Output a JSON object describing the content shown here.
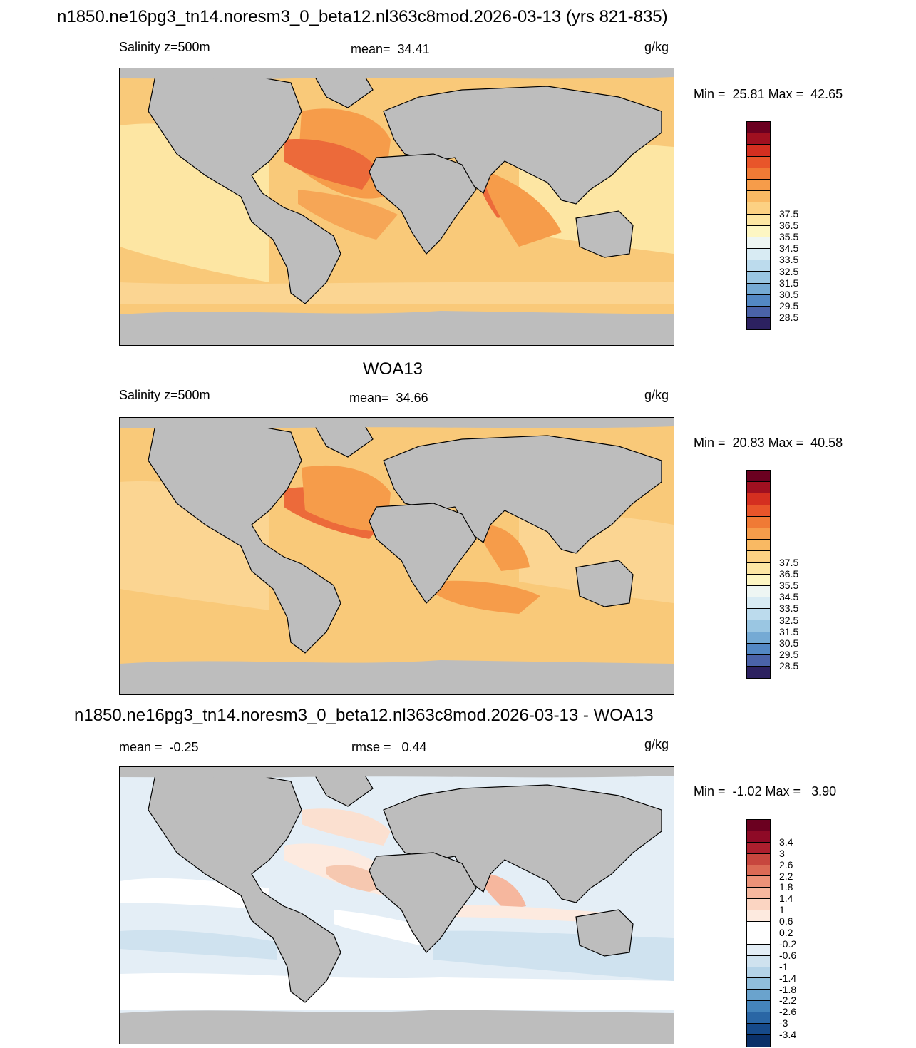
{
  "panel1": {
    "title": "n1850.ne16pg3_tn14.noresm3_0_beta12.nl363c8mod.2026-03-13 (yrs 821-835)",
    "left_label": "Salinity z=500m",
    "center_label": "mean=  34.41",
    "units": "g/kg",
    "minmax": "Min =  25.81 Max =  42.65",
    "colorbar_labels": [
      "37.5",
      "36.5",
      "35.5",
      "34.5",
      "33.5",
      "32.5",
      "31.5",
      "30.5",
      "29.5",
      "28.5"
    ]
  },
  "panel2": {
    "title": "WOA13",
    "left_label": "Salinity z=500m",
    "center_label": "mean=  34.66",
    "units": "g/kg",
    "minmax": "Min =  20.83 Max =  40.58",
    "colorbar_labels": [
      "37.5",
      "36.5",
      "35.5",
      "34.5",
      "33.5",
      "32.5",
      "31.5",
      "30.5",
      "29.5",
      "28.5"
    ]
  },
  "panel3": {
    "title": "n1850.ne16pg3_tn14.noresm3_0_beta12.nl363c8mod.2026-03-13 - WOA13",
    "left_label": "mean =  -0.25",
    "center_label": "rmse =   0.44",
    "units": "g/kg",
    "minmax": "Min =  -1.02 Max =   3.90",
    "colorbar_labels": [
      "3.4",
      "3",
      "2.6",
      "2.2",
      "1.8",
      "1.4",
      "1",
      "0.6",
      "0.2",
      "-0.2",
      "-0.6",
      "-1",
      "-1.4",
      "-1.8",
      "-2.2",
      "-2.6",
      "-3",
      "-3.4"
    ]
  },
  "colors": {
    "land": "#bdbdbd",
    "salinity_scale": [
      "#6b0020",
      "#a01020",
      "#d42f20",
      "#e8552a",
      "#f07a35",
      "#f69c4a",
      "#f9b963",
      "#fcd183",
      "#fde6a3",
      "#fdf6c3",
      "#eef6f3",
      "#d8ebf3",
      "#bcdbed",
      "#9ac6e2",
      "#75aad4",
      "#5388c4",
      "#4a62a8",
      "#2c2160"
    ],
    "anomaly_scale": [
      "#6b0020",
      "#8e0a26",
      "#ad1f2e",
      "#c7463e",
      "#db6a55",
      "#ec9278",
      "#f6b79e",
      "#fbd5c2",
      "#fdeadf",
      "#ffffff",
      "#ffffff",
      "#e4eef6",
      "#cfe2ef",
      "#b4d3e8",
      "#90bedc",
      "#6aa3cd",
      "#4484bb",
      "#2a66a5",
      "#164a8a",
      "#0a3068"
    ]
  }
}
